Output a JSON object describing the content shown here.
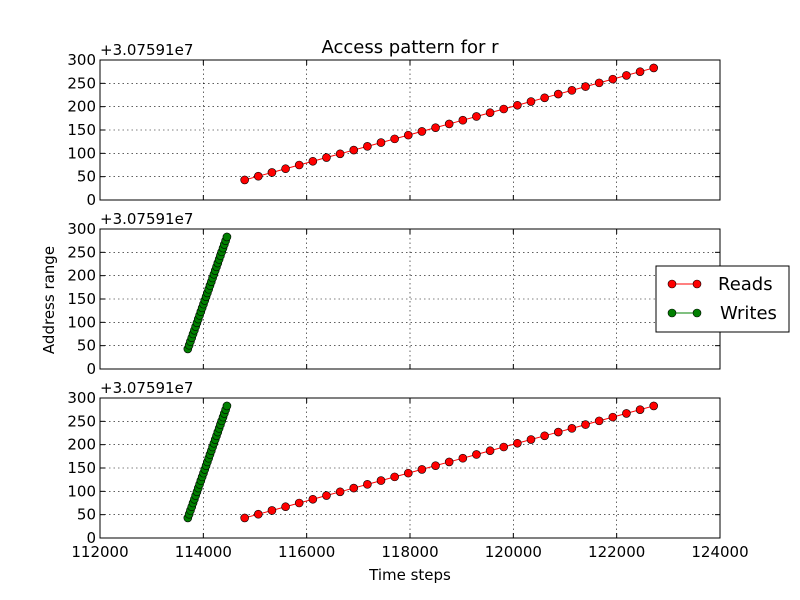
{
  "chart_data": {
    "type": "line",
    "title": "Access pattern for r",
    "xlabel": "Time steps",
    "ylabel": "Address range",
    "xlim": [
      112000,
      124000
    ],
    "ylim": [
      0,
      300
    ],
    "x_ticks": [
      "112000",
      "114000",
      "116000",
      "118000",
      "120000",
      "122000",
      "124000"
    ],
    "y_ticks": [
      "0",
      "50",
      "100",
      "150",
      "200",
      "250",
      "300"
    ],
    "y_offset_label": "+3.07591e7",
    "grid": true,
    "legend": {
      "placement": "right-outside",
      "entries": [
        {
          "name": "Reads",
          "color": "#ff0000"
        },
        {
          "name": "Writes",
          "color": "#008000"
        }
      ]
    },
    "series": [
      {
        "name": "Reads",
        "color": "#ff0000",
        "x_start": 114800,
        "x_end": 122750,
        "y_start": 43,
        "y_end": 284,
        "y_step": 8
      },
      {
        "name": "Writes",
        "color": "#008000",
        "x_start": 113700,
        "x_end": 114460,
        "y_start": 43,
        "y_end": 284,
        "y_step": 8
      }
    ],
    "panels": [
      {
        "name": "reads-panel",
        "series": [
          "Reads"
        ]
      },
      {
        "name": "writes-panel",
        "series": [
          "Writes"
        ]
      },
      {
        "name": "combined-panel",
        "series": [
          "Writes",
          "Reads"
        ]
      }
    ]
  }
}
